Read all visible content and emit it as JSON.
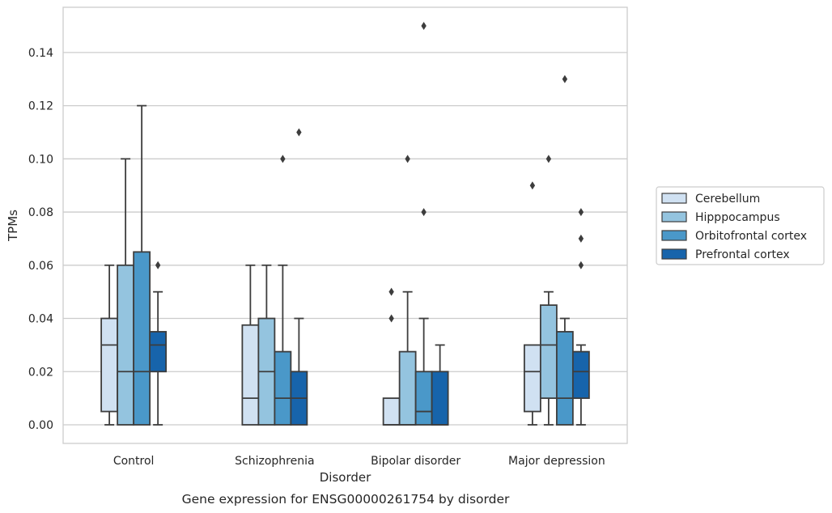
{
  "chart_data": {
    "type": "box",
    "xlabel": "Disorder",
    "ylabel": "TPMs",
    "caption": "Gene expression for ENSG00000261754 by disorder",
    "ylim": [
      -0.007,
      0.157
    ],
    "yticks": [
      0.0,
      0.02,
      0.04,
      0.06,
      0.08,
      0.1,
      0.12,
      0.14
    ],
    "ytick_labels": [
      "0.00",
      "0.02",
      "0.04",
      "0.06",
      "0.08",
      "0.10",
      "0.12",
      "0.14"
    ],
    "grid": "horizontal",
    "legend_placement": "right",
    "categories": [
      "Control",
      "Schizophrenia",
      "Bipolar disorder",
      "Major depression"
    ],
    "series": [
      {
        "name": "Cerebellum",
        "color": "#d0e1f2",
        "boxes": [
          {
            "whislo": 0.0,
            "q1": 0.005,
            "med": 0.03,
            "q3": 0.04,
            "whishi": 0.06,
            "fliers": []
          },
          {
            "whislo": 0.0,
            "q1": 0.0,
            "med": 0.01,
            "q3": 0.0375,
            "whishi": 0.06,
            "fliers": []
          },
          {
            "whislo": 0.0,
            "q1": 0.0,
            "med": 0.0,
            "q3": 0.01,
            "whishi": 0.01,
            "fliers": [
              0.04,
              0.05
            ]
          },
          {
            "whislo": 0.0,
            "q1": 0.005,
            "med": 0.02,
            "q3": 0.03,
            "whishi": 0.03,
            "fliers": [
              0.09
            ]
          }
        ]
      },
      {
        "name": "Hipppocampus",
        "color": "#94c4df",
        "boxes": [
          {
            "whislo": 0.0,
            "q1": 0.0,
            "med": 0.02,
            "q3": 0.06,
            "whishi": 0.1,
            "fliers": []
          },
          {
            "whislo": 0.0,
            "q1": 0.0,
            "med": 0.02,
            "q3": 0.04,
            "whishi": 0.06,
            "fliers": []
          },
          {
            "whislo": 0.0,
            "q1": 0.0,
            "med": 0.0,
            "q3": 0.0275,
            "whishi": 0.05,
            "fliers": [
              0.1
            ]
          },
          {
            "whislo": 0.0,
            "q1": 0.01,
            "med": 0.03,
            "q3": 0.045,
            "whishi": 0.05,
            "fliers": [
              0.1
            ]
          }
        ]
      },
      {
        "name": "Orbitofrontal cortex",
        "color": "#4a98c9",
        "boxes": [
          {
            "whislo": 0.0,
            "q1": 0.0,
            "med": 0.02,
            "q3": 0.065,
            "whishi": 0.12,
            "fliers": []
          },
          {
            "whislo": 0.0,
            "q1": 0.0,
            "med": 0.01,
            "q3": 0.0275,
            "whishi": 0.06,
            "fliers": [
              0.1
            ]
          },
          {
            "whislo": 0.0,
            "q1": 0.0,
            "med": 0.005,
            "q3": 0.02,
            "whishi": 0.04,
            "fliers": [
              0.08,
              0.15
            ]
          },
          {
            "whislo": 0.0,
            "q1": 0.0,
            "med": 0.01,
            "q3": 0.035,
            "whishi": 0.04,
            "fliers": [
              0.13
            ]
          }
        ]
      },
      {
        "name": "Prefrontal cortex",
        "color": "#1764ab",
        "boxes": [
          {
            "whislo": 0.0,
            "q1": 0.02,
            "med": 0.03,
            "q3": 0.035,
            "whishi": 0.05,
            "fliers": [
              0.06
            ]
          },
          {
            "whislo": 0.0,
            "q1": 0.0,
            "med": 0.01,
            "q3": 0.02,
            "whishi": 0.04,
            "fliers": [
              0.11
            ]
          },
          {
            "whislo": 0.0,
            "q1": 0.0,
            "med": 0.0,
            "q3": 0.02,
            "whishi": 0.03,
            "fliers": []
          },
          {
            "whislo": 0.0,
            "q1": 0.01,
            "med": 0.02,
            "q3": 0.0275,
            "whishi": 0.03,
            "fliers": [
              0.06,
              0.07,
              0.08
            ]
          }
        ]
      }
    ]
  }
}
